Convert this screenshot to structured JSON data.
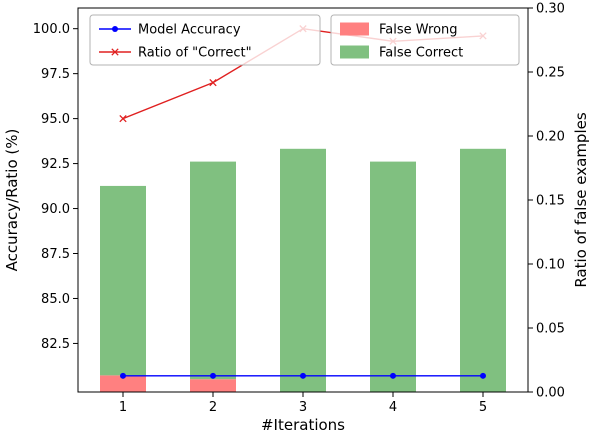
{
  "chart_data": {
    "type": "bar",
    "subtype": "stacked-bars-with-dual-axis-lines",
    "title": "",
    "xlabel": "#Iterations",
    "ylabel_left": "Accuracy/Ratio (%)",
    "ylabel_right": "Ratio of false examples",
    "categories": [
      "1",
      "2",
      "3",
      "4",
      "5"
    ],
    "left_axis": {
      "ticks": [
        82.5,
        85.0,
        87.5,
        90.0,
        92.5,
        95.0,
        97.5,
        100.0
      ],
      "ylim": [
        79.8,
        101.15
      ],
      "title_color": "#ff0000",
      "tick_color": "#000000"
    },
    "right_axis": {
      "ticks": [
        0.0,
        0.05,
        0.1,
        0.15,
        0.2,
        0.25,
        0.3
      ],
      "ylim": [
        0.0,
        0.3
      ],
      "title_color": "#0000ff",
      "tick_color": "#000000"
    },
    "series": [
      {
        "name": "False Wrong",
        "type": "bar",
        "axis": "right",
        "color": "#ff8080",
        "values": [
          0.013,
          0.01,
          0.0,
          0.0,
          0.0
        ]
      },
      {
        "name": "False Correct",
        "type": "bar",
        "axis": "right",
        "color": "#80c080",
        "values": [
          0.148,
          0.17,
          0.19,
          0.18,
          0.19
        ]
      },
      {
        "name": "Model Accuracy",
        "type": "line",
        "axis": "left",
        "color": "#0000ff",
        "marker": "circle",
        "values": [
          80.7,
          80.7,
          80.7,
          80.7,
          80.7
        ]
      },
      {
        "name": "Ratio of \"Correct\"",
        "type": "line",
        "axis": "left",
        "color": "#e02020",
        "marker": "x",
        "values": [
          95.0,
          97.0,
          100.0,
          99.3,
          99.6
        ]
      }
    ],
    "legends": [
      {
        "position": "upper-left",
        "entries": [
          "Model Accuracy",
          "Ratio of \"Correct\""
        ]
      },
      {
        "position": "upper-right",
        "entries": [
          "False Wrong",
          "False Correct"
        ]
      }
    ],
    "grid": false,
    "plot_border_color": "#000000",
    "legend_border_color": "#b3b3b3"
  }
}
